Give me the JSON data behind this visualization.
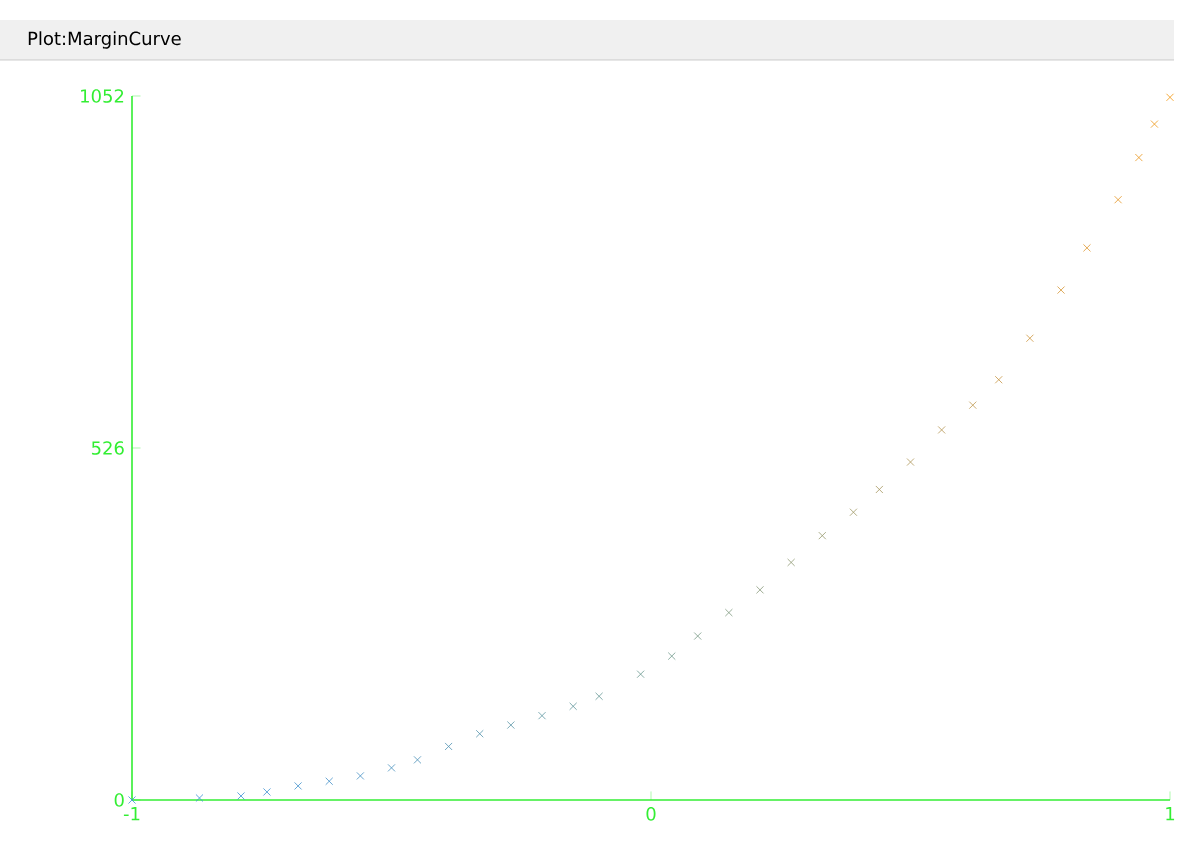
{
  "chart_data": {
    "type": "scatter",
    "title": "Plot:MarginCurve",
    "marker": "cross",
    "xlim": [
      -1,
      1
    ],
    "ylim": [
      0,
      1052
    ],
    "xticks": [
      -1,
      0,
      1
    ],
    "yticks": [
      0,
      526,
      1052
    ],
    "x": [
      -1,
      -0.87,
      -0.79,
      -0.74,
      -0.68,
      -0.62,
      -0.56,
      -0.5,
      -0.45,
      -0.39,
      -0.33,
      -0.27,
      -0.21,
      -0.15,
      -0.1,
      -0.02,
      0.04,
      0.09,
      0.15,
      0.21,
      0.27,
      0.33,
      0.39,
      0.44,
      0.5,
      0.56,
      0.62,
      0.67,
      0.73,
      0.79,
      0.84,
      0.9,
      0.94,
      0.97,
      1.0
    ],
    "values": [
      0,
      3,
      6,
      12,
      21,
      28,
      36,
      48,
      60,
      80,
      99,
      112,
      126,
      140,
      155,
      188,
      215,
      245,
      280,
      314,
      355,
      395,
      430,
      464,
      505,
      553,
      590,
      628,
      690,
      762,
      825,
      897,
      960,
      1010,
      1050
    ],
    "colors": [
      "#3a8fd6",
      "#3a8fd6",
      "#3a8fd4",
      "#3c8fd0",
      "#3e8fcc",
      "#428fc8",
      "#458fc4",
      "#4890be",
      "#4b91b8",
      "#4f92b2",
      "#5393ac",
      "#5894a6",
      "#5c95a0",
      "#60969a",
      "#649794",
      "#6a988e",
      "#70988a",
      "#769884",
      "#7e987e",
      "#869878",
      "#8e9872",
      "#96986c",
      "#9e9866",
      "#a69760",
      "#ae975a",
      "#b69754",
      "#be974c",
      "#c69644",
      "#ce963c",
      "#d69634",
      "#de962c",
      "#e49624",
      "#ea961c",
      "#ee9614",
      "#f2960c"
    ]
  }
}
